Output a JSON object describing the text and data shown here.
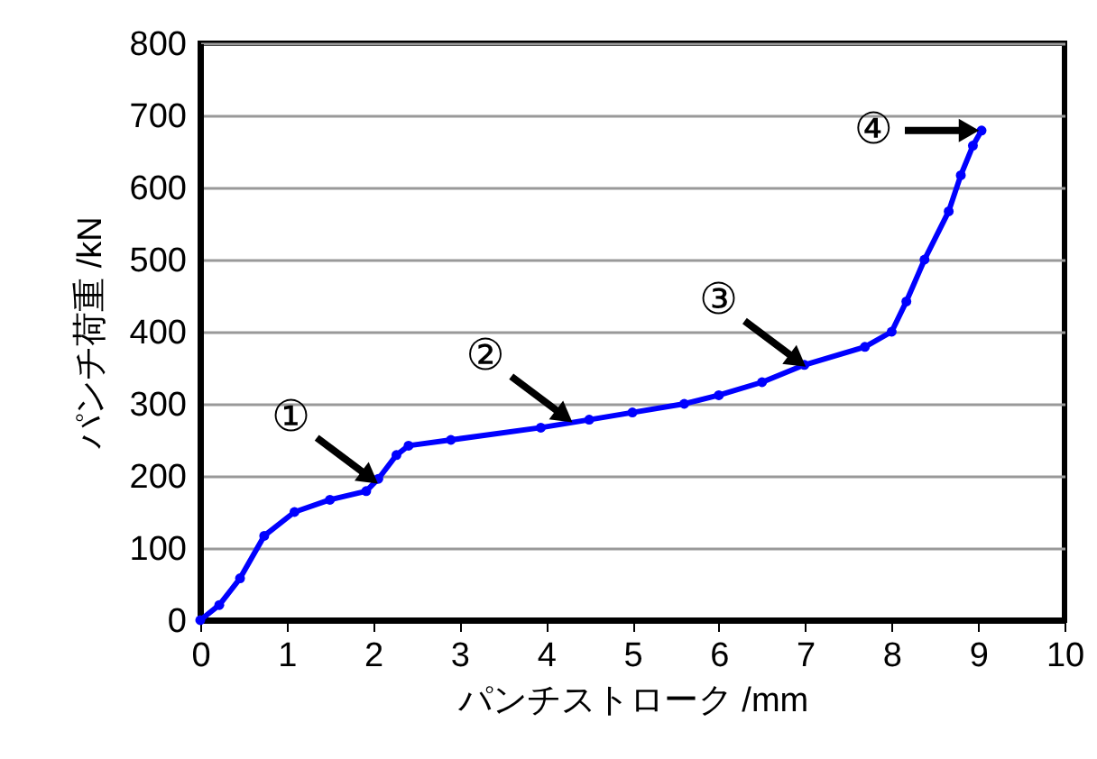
{
  "chart_data": {
    "type": "line",
    "xlabel": "パンチストローク /mm",
    "ylabel": "パンチ荷重 /kN",
    "xlim": [
      0,
      10
    ],
    "xticks": [
      0,
      1,
      2,
      3,
      4,
      5,
      6,
      7,
      8,
      9,
      10
    ],
    "ylim": [
      0,
      800
    ],
    "yticks": [
      0,
      100,
      200,
      300,
      400,
      500,
      600,
      700,
      800
    ],
    "grid": "y",
    "marker": "circle",
    "line_style": "solid",
    "series": [
      {
        "color": "#0000ff",
        "x": [
          0,
          0.22,
          0.46,
          0.74,
          1.09,
          1.5,
          1.92,
          2.06,
          2.27,
          2.41,
          2.9,
          3.94,
          4.5,
          5,
          5.6,
          6,
          6.5,
          6.99,
          7.69,
          8.0,
          8.17,
          8.38,
          8.66,
          8.8,
          8.94,
          9.04
        ],
        "values": [
          0,
          21,
          58,
          117,
          150,
          167,
          179,
          196,
          229,
          242,
          250,
          267,
          278,
          288,
          300,
          312,
          330,
          354,
          379,
          400,
          442,
          500,
          567,
          617,
          658,
          679
        ]
      }
    ],
    "annotations": [
      {
        "text": "①",
        "x": 2.05,
        "y": 190
      },
      {
        "text": "②",
        "x": 4.3,
        "y": 275
      },
      {
        "text": "③",
        "x": 7.0,
        "y": 352
      },
      {
        "text": "④",
        "x": 9.0,
        "y": 679
      }
    ]
  }
}
